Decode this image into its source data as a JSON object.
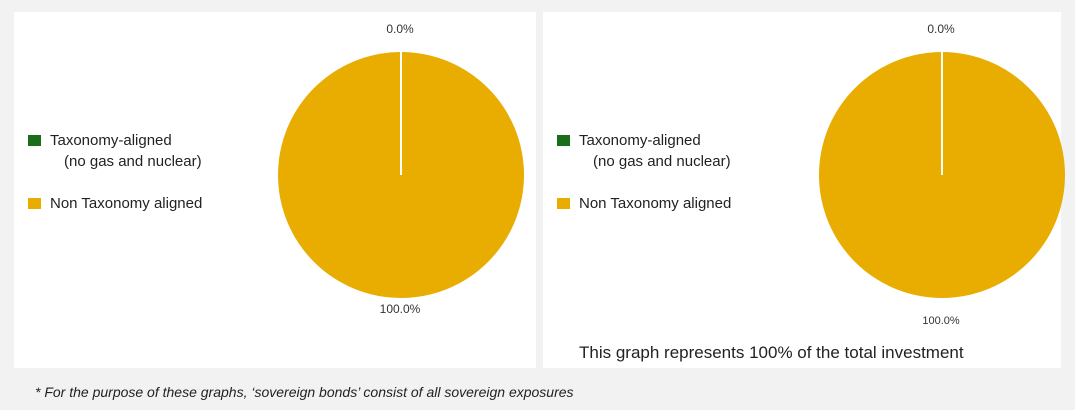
{
  "chart_data": [
    {
      "type": "pie",
      "legend": [
        "Taxonomy-aligned (no gas and nuclear)",
        "Non Taxonomy aligned"
      ],
      "slices": [
        {
          "label": "Taxonomy-aligned (no gas and nuclear)",
          "value": 0.0,
          "display": "0.0%",
          "color": "#1a6e1a"
        },
        {
          "label": "Non Taxonomy aligned",
          "value": 100.0,
          "display": "100.0%",
          "color": "#e8ad00"
        }
      ],
      "legend_placement": "left"
    },
    {
      "type": "pie",
      "legend": [
        "Taxonomy-aligned (no gas and nuclear)",
        "Non Taxonomy aligned"
      ],
      "slices": [
        {
          "label": "Taxonomy-aligned (no gas and nuclear)",
          "value": 0.0,
          "display": "0.0%",
          "color": "#1a6e1a"
        },
        {
          "label": "Non Taxonomy aligned",
          "value": 100.0,
          "display": "100.0%",
          "color": "#e8ad00"
        }
      ],
      "legend_placement": "left",
      "note": "This graph represents 100% of the total investment"
    }
  ],
  "legend": {
    "aligned_line1": "Taxonomy-aligned",
    "aligned_line2": "(no gas and nuclear)",
    "non_aligned": "Non Taxonomy aligned"
  },
  "footnote": "* For the purpose of these graphs, ‘sovereign bonds’ consist of all sovereign exposures"
}
